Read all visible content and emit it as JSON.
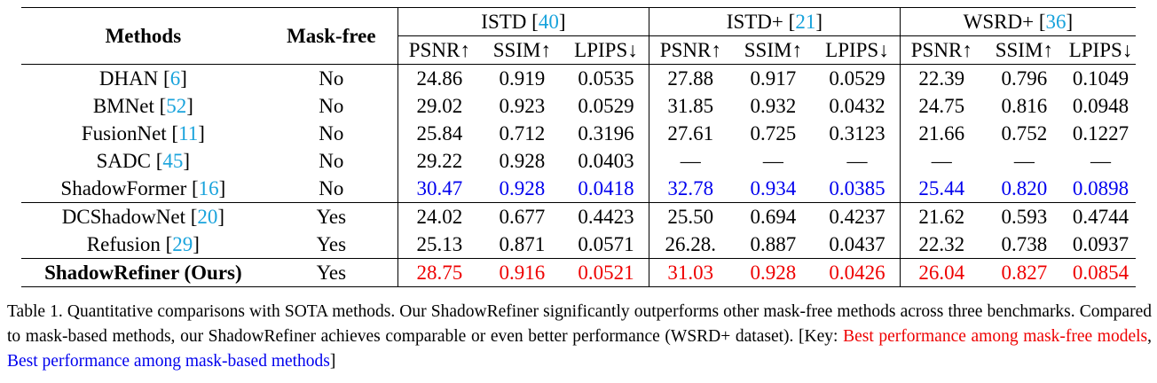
{
  "table": {
    "col_methods": "Methods",
    "col_maskfree": "Mask-free",
    "datasets": [
      {
        "name": "ISTD",
        "cite": "40"
      },
      {
        "name": "ISTD+",
        "cite": "21"
      },
      {
        "name": "WSRD+",
        "cite": "36"
      }
    ],
    "metrics": [
      "PSNR↑",
      "SSIM↑",
      "LPIPS↓"
    ],
    "rows_mask_based": [
      {
        "method": "DHAN",
        "cite": "6",
        "maskfree": "No",
        "values": [
          "24.86",
          "0.919",
          "0.0535",
          "27.88",
          "0.917",
          "0.0529",
          "22.39",
          "0.796",
          "0.1049"
        ]
      },
      {
        "method": "BMNet",
        "cite": "52",
        "maskfree": "No",
        "values": [
          "29.02",
          "0.923",
          "0.0529",
          "31.85",
          "0.932",
          "0.0432",
          "24.75",
          "0.816",
          "0.0948"
        ]
      },
      {
        "method": "FusionNet",
        "cite": "11",
        "maskfree": "No",
        "values": [
          "25.84",
          "0.712",
          "0.3196",
          "27.61",
          "0.725",
          "0.3123",
          "21.66",
          "0.752",
          "0.1227"
        ]
      },
      {
        "method": "SADC",
        "cite": "45",
        "maskfree": "No",
        "values": [
          "29.22",
          "0.928",
          "0.0403",
          "—",
          "—",
          "—",
          "—",
          "—",
          "—"
        ]
      },
      {
        "method": "ShadowFormer",
        "cite": "16",
        "maskfree": "No",
        "values": [
          "30.47",
          "0.928",
          "0.0418",
          "32.78",
          "0.934",
          "0.0385",
          "25.44",
          "0.820",
          "0.0898"
        ]
      }
    ],
    "rows_mask_free": [
      {
        "method": "DCShadowNet",
        "cite": "20",
        "maskfree": "Yes",
        "values": [
          "24.02",
          "0.677",
          "0.4423",
          "25.50",
          "0.694",
          "0.4237",
          "21.62",
          "0.593",
          "0.4744"
        ]
      },
      {
        "method": "Refusion",
        "cite": "29",
        "maskfree": "Yes",
        "values": [
          "25.13",
          "0.871",
          "0.0571",
          "26.28.",
          "0.887",
          "0.0437",
          "22.32",
          "0.738",
          "0.0937"
        ]
      }
    ],
    "row_ours": {
      "method": "ShadowRefiner (Ours)",
      "maskfree": "Yes",
      "values": [
        "28.75",
        "0.916",
        "0.0521",
        "31.03",
        "0.928",
        "0.0426",
        "26.04",
        "0.827",
        "0.0854"
      ]
    }
  },
  "caption": {
    "part1": "Table 1. Quantitative comparisons with SOTA methods. Our ShadowRefiner significantly outperforms other mask-free methods across three benchmarks. Compared to mask-based methods, our ShadowRefiner achieves comparable or even better performance (WSRD+ dataset). [Key: ",
    "key_red": "Best performance among mask-free models",
    "sep": ", ",
    "key_blue": "Best performance among mask-based methods",
    "end": "]"
  },
  "colors": {
    "best_mask_free": "#ee0000",
    "best_mask_based": "#0000ee",
    "citation": "#19a3dc"
  }
}
